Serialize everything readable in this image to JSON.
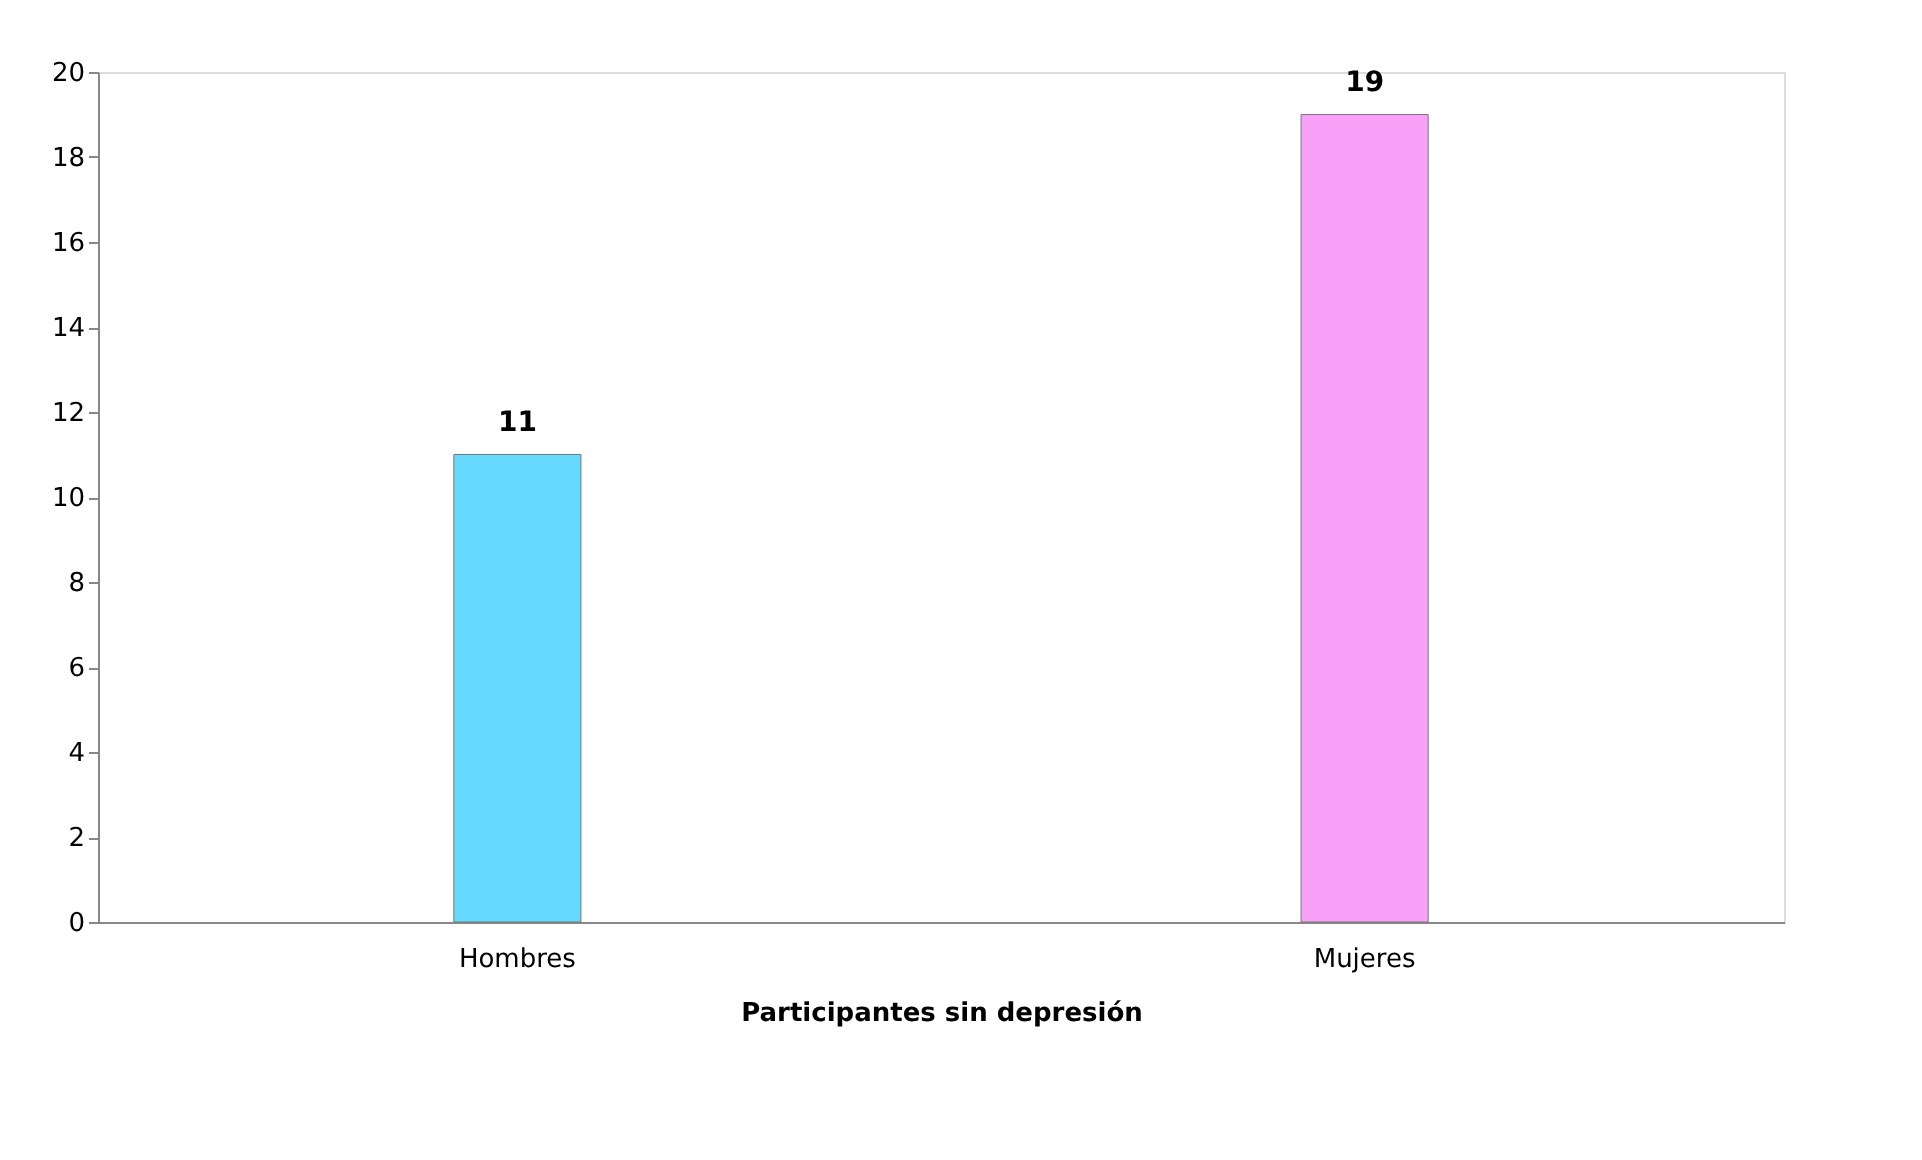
{
  "chart_data": {
    "type": "bar",
    "xlabel": "Participantes sin depresión",
    "categories": [
      "Hombres",
      "Mujeres"
    ],
    "values": [
      11,
      19
    ],
    "colors": [
      "#66d9ff",
      "#f9a0f9"
    ],
    "ylim": [
      0,
      20
    ],
    "yticks": [
      0,
      2,
      4,
      6,
      8,
      10,
      12,
      14,
      16,
      18,
      20
    ],
    "grid": false,
    "data_labels": true
  }
}
